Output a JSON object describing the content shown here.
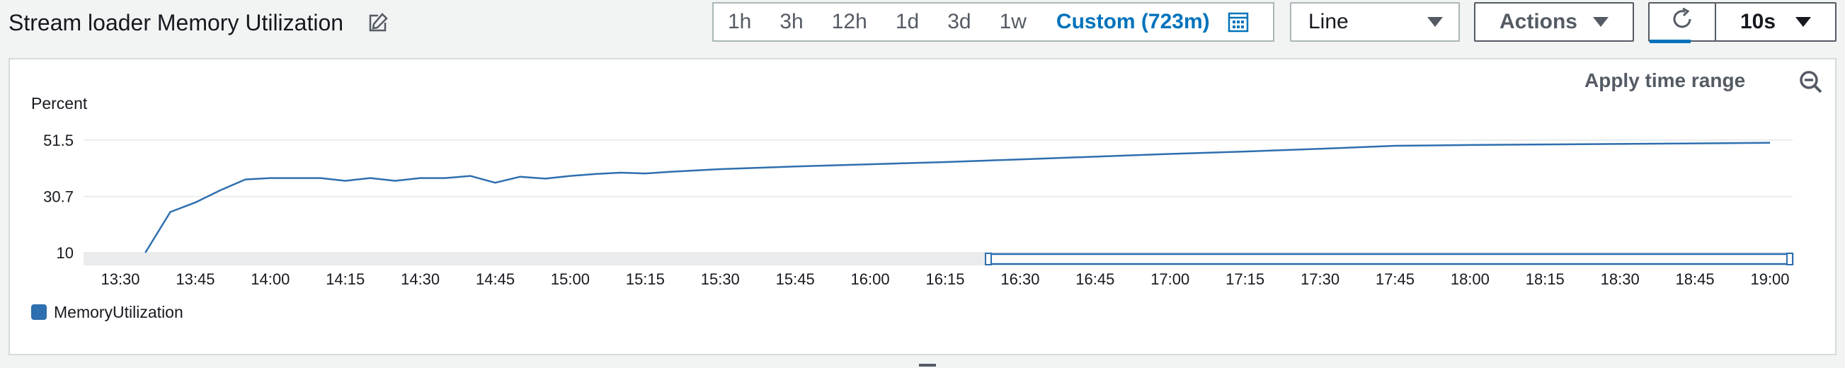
{
  "header": {
    "title": "Stream loader Memory Utilization",
    "edit_icon": "edit-icon"
  },
  "time_range": {
    "options": [
      "1h",
      "3h",
      "12h",
      "1d",
      "3d",
      "1w"
    ],
    "custom_label": "Custom (723m)",
    "calendar_icon": "calendar-icon"
  },
  "view_select": {
    "value": "Line"
  },
  "actions_button": {
    "label": "Actions"
  },
  "refresh": {
    "icon": "refresh-icon",
    "interval": "10s"
  },
  "panel": {
    "apply_time_range": "Apply time range",
    "zoom_icon": "zoom-out-icon"
  },
  "colors": {
    "accent": "#0073bb",
    "series": "#2e6faf",
    "legend_swatch": "#2e6faf"
  },
  "chart_data": {
    "type": "line",
    "ylabel": "Percent",
    "ylim": [
      10,
      51.5
    ],
    "yticks": [
      10,
      30.7,
      51.5
    ],
    "ytick_labels": [
      "10",
      "30.7",
      "51.5"
    ],
    "xticks": [
      "13:30",
      "13:45",
      "14:00",
      "14:15",
      "14:30",
      "14:45",
      "15:00",
      "15:15",
      "15:30",
      "15:45",
      "16:00",
      "16:15",
      "16:30",
      "16:45",
      "17:00",
      "17:15",
      "17:30",
      "17:45",
      "18:00",
      "18:15",
      "18:30",
      "18:45",
      "19:00"
    ],
    "grid": true,
    "legend_position": "bottom-left",
    "series": [
      {
        "name": "MemoryUtilization",
        "x": [
          "13:35",
          "13:40",
          "13:45",
          "13:50",
          "13:55",
          "14:00",
          "14:05",
          "14:10",
          "14:15",
          "14:20",
          "14:25",
          "14:30",
          "14:35",
          "14:40",
          "14:45",
          "14:50",
          "14:55",
          "15:00",
          "15:05",
          "15:10",
          "15:15",
          "15:20",
          "15:30",
          "15:45",
          "16:00",
          "16:15",
          "16:30",
          "16:45",
          "17:00",
          "17:15",
          "17:30",
          "17:45",
          "18:00",
          "18:15",
          "18:30",
          "18:45",
          "19:00"
        ],
        "y": [
          10,
          25,
          28.5,
          33,
          37,
          37.5,
          37.5,
          37.5,
          36.5,
          37.5,
          36.5,
          37.5,
          37.5,
          38.3,
          35.8,
          38,
          37.3,
          38.3,
          39,
          39.5,
          39.2,
          39.8,
          40.8,
          41.8,
          42.6,
          43.4,
          44.4,
          45.4,
          46.4,
          47.3,
          48.3,
          49.4,
          49.7,
          49.9,
          50.1,
          50.3,
          50.5
        ]
      }
    ]
  }
}
